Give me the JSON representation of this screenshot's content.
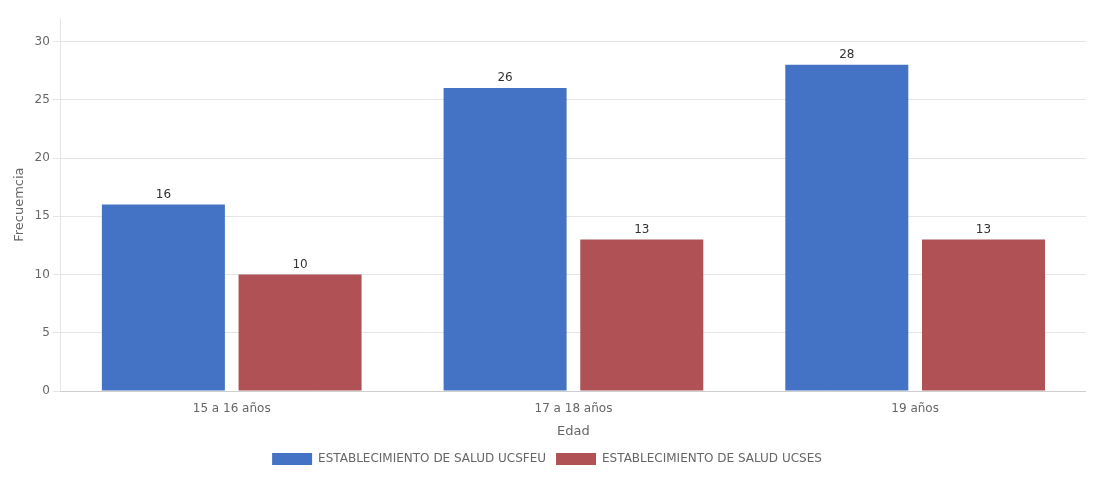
{
  "chart_data": {
    "type": "bar",
    "categories": [
      "15 a 16 años",
      "17 a 18 años",
      "19 años"
    ],
    "series": [
      {
        "name": "ESTABLECIMIENTO DE SALUD UCSFEU",
        "color": "#4472C4",
        "values": [
          16,
          26,
          28
        ]
      },
      {
        "name": "ESTABLECIMIENTO DE SALUD UCSES",
        "color": "#B05255",
        "values": [
          10,
          13,
          13
        ]
      }
    ],
    "xlabel": "Edad",
    "ylabel": "Frecuemcia",
    "ylim": [
      0,
      32
    ],
    "yticks": [
      0,
      5,
      10,
      15,
      20,
      25,
      30
    ],
    "grid": true,
    "legend": "bottom",
    "data_labels": true
  }
}
